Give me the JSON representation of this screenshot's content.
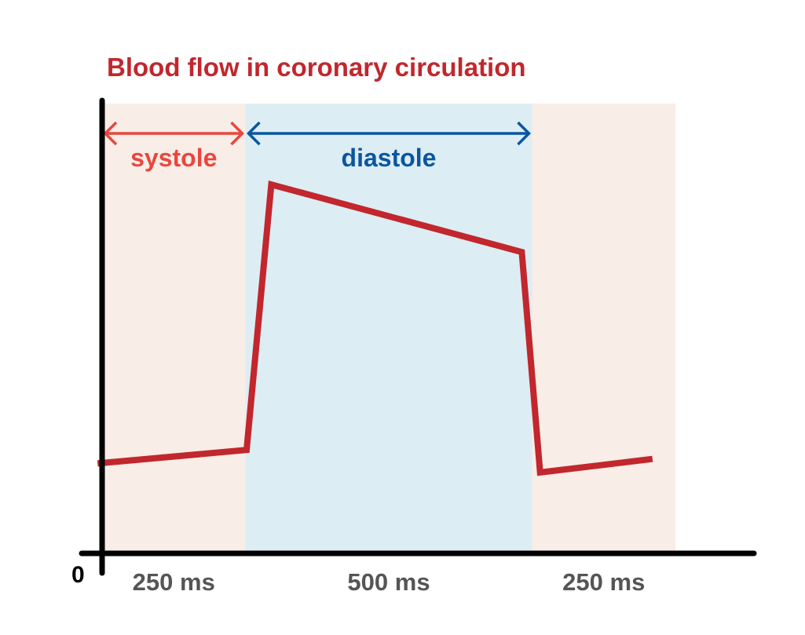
{
  "chart_data": {
    "type": "line",
    "title": "Blood flow in coronary circulation",
    "origin_label": "0",
    "x_unit": "ms",
    "x_range": [
      0,
      1000
    ],
    "y_range": [
      0,
      100
    ],
    "regions": [
      {
        "name": "systole-1",
        "x_start": 0,
        "x_end": 250,
        "color": "#f8ede7"
      },
      {
        "name": "diastole",
        "x_start": 250,
        "x_end": 750,
        "color": "#ddedf4"
      },
      {
        "name": "systole-2",
        "x_start": 750,
        "x_end": 1000,
        "color": "#f8ede7"
      }
    ],
    "phases": [
      {
        "label": "systole",
        "x_start": 0,
        "x_end": 250,
        "color": "#e8473d"
      },
      {
        "label": "diastole",
        "x_start": 250,
        "x_end": 750,
        "color": "#0a56a0"
      }
    ],
    "duration_labels": [
      {
        "text": "250 ms",
        "x_center": 125
      },
      {
        "text": "500 ms",
        "x_center": 500
      },
      {
        "text": "250 ms",
        "x_center": 875
      }
    ],
    "series": [
      {
        "color": "#c1272d",
        "points": [
          [
            -8,
            20
          ],
          [
            252,
            23
          ],
          [
            295,
            82
          ],
          [
            732,
            67
          ],
          [
            764,
            18
          ],
          [
            960,
            21
          ]
        ]
      }
    ],
    "colors": {
      "title": "#c1272d",
      "axis": "#000000",
      "tick_text": "#555555"
    }
  }
}
